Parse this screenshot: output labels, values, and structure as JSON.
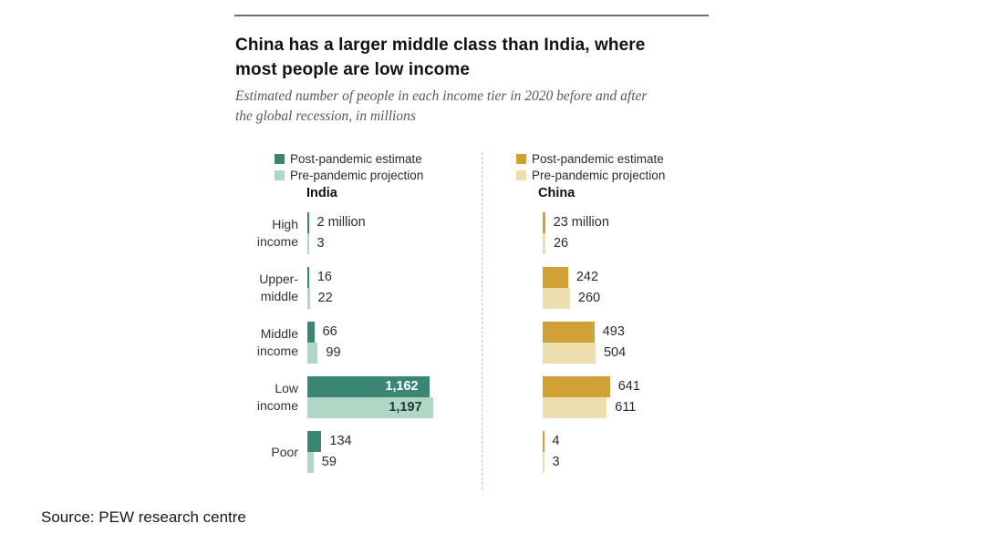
{
  "header": {
    "title_line1": "China has a larger middle class than India, where",
    "title_line2": "most people are low income",
    "subtitle_line1": "Estimated number of people in each income tier in 2020 before and after",
    "subtitle_line2": "the global recession, in millions"
  },
  "source": {
    "label": "Source: PEW research centre"
  },
  "chart_data": {
    "type": "bar",
    "orientation": "horizontal",
    "unit": "millions of people",
    "title": "China has a larger middle class than India, where most people are low income",
    "subtitle": "Estimated number of people in each income tier in 2020 before and after the global recession, in millions",
    "legend_position": "top",
    "grid": false,
    "categories": [
      "High income",
      "Upper-middle",
      "Middle income",
      "Low income",
      "Poor"
    ],
    "category_lines": [
      [
        "High",
        "income"
      ],
      [
        "Upper-",
        "middle"
      ],
      [
        "Middle",
        "income"
      ],
      [
        "Low",
        "income"
      ],
      [
        "Poor"
      ]
    ],
    "panels": [
      {
        "name": "India",
        "colors": {
          "post": "#3b8672",
          "pre": "#aed7c6"
        },
        "legend": [
          "Post-pandemic estimate",
          "Pre-pandemic projection"
        ],
        "series": [
          {
            "name": "Post-pandemic estimate",
            "values": [
              2,
              16,
              66,
              1162,
              134
            ]
          },
          {
            "name": "Pre-pandemic projection",
            "values": [
              3,
              22,
              99,
              1197,
              59
            ]
          }
        ],
        "value_labels": [
          [
            "2 million",
            "3"
          ],
          [
            "16",
            "22"
          ],
          [
            "66",
            "99"
          ],
          [
            "1,162",
            "1,197"
          ],
          [
            "134",
            "59"
          ]
        ],
        "label_inside_rows": [
          3
        ]
      },
      {
        "name": "China",
        "colors": {
          "post": "#d1a137",
          "pre": "#ecdfad"
        },
        "legend": [
          "Post-pandemic estimate",
          "Pre-pandemic projection"
        ],
        "series": [
          {
            "name": "Post-pandemic estimate",
            "values": [
              23,
              242,
              493,
              641,
              4
            ]
          },
          {
            "name": "Pre-pandemic projection",
            "values": [
              26,
              260,
              504,
              611,
              3
            ]
          }
        ],
        "value_labels": [
          [
            "23 million",
            "26"
          ],
          [
            "242",
            "260"
          ],
          [
            "493",
            "504"
          ],
          [
            "641",
            "611"
          ],
          [
            "4",
            "3"
          ]
        ],
        "label_inside_rows": []
      }
    ]
  }
}
